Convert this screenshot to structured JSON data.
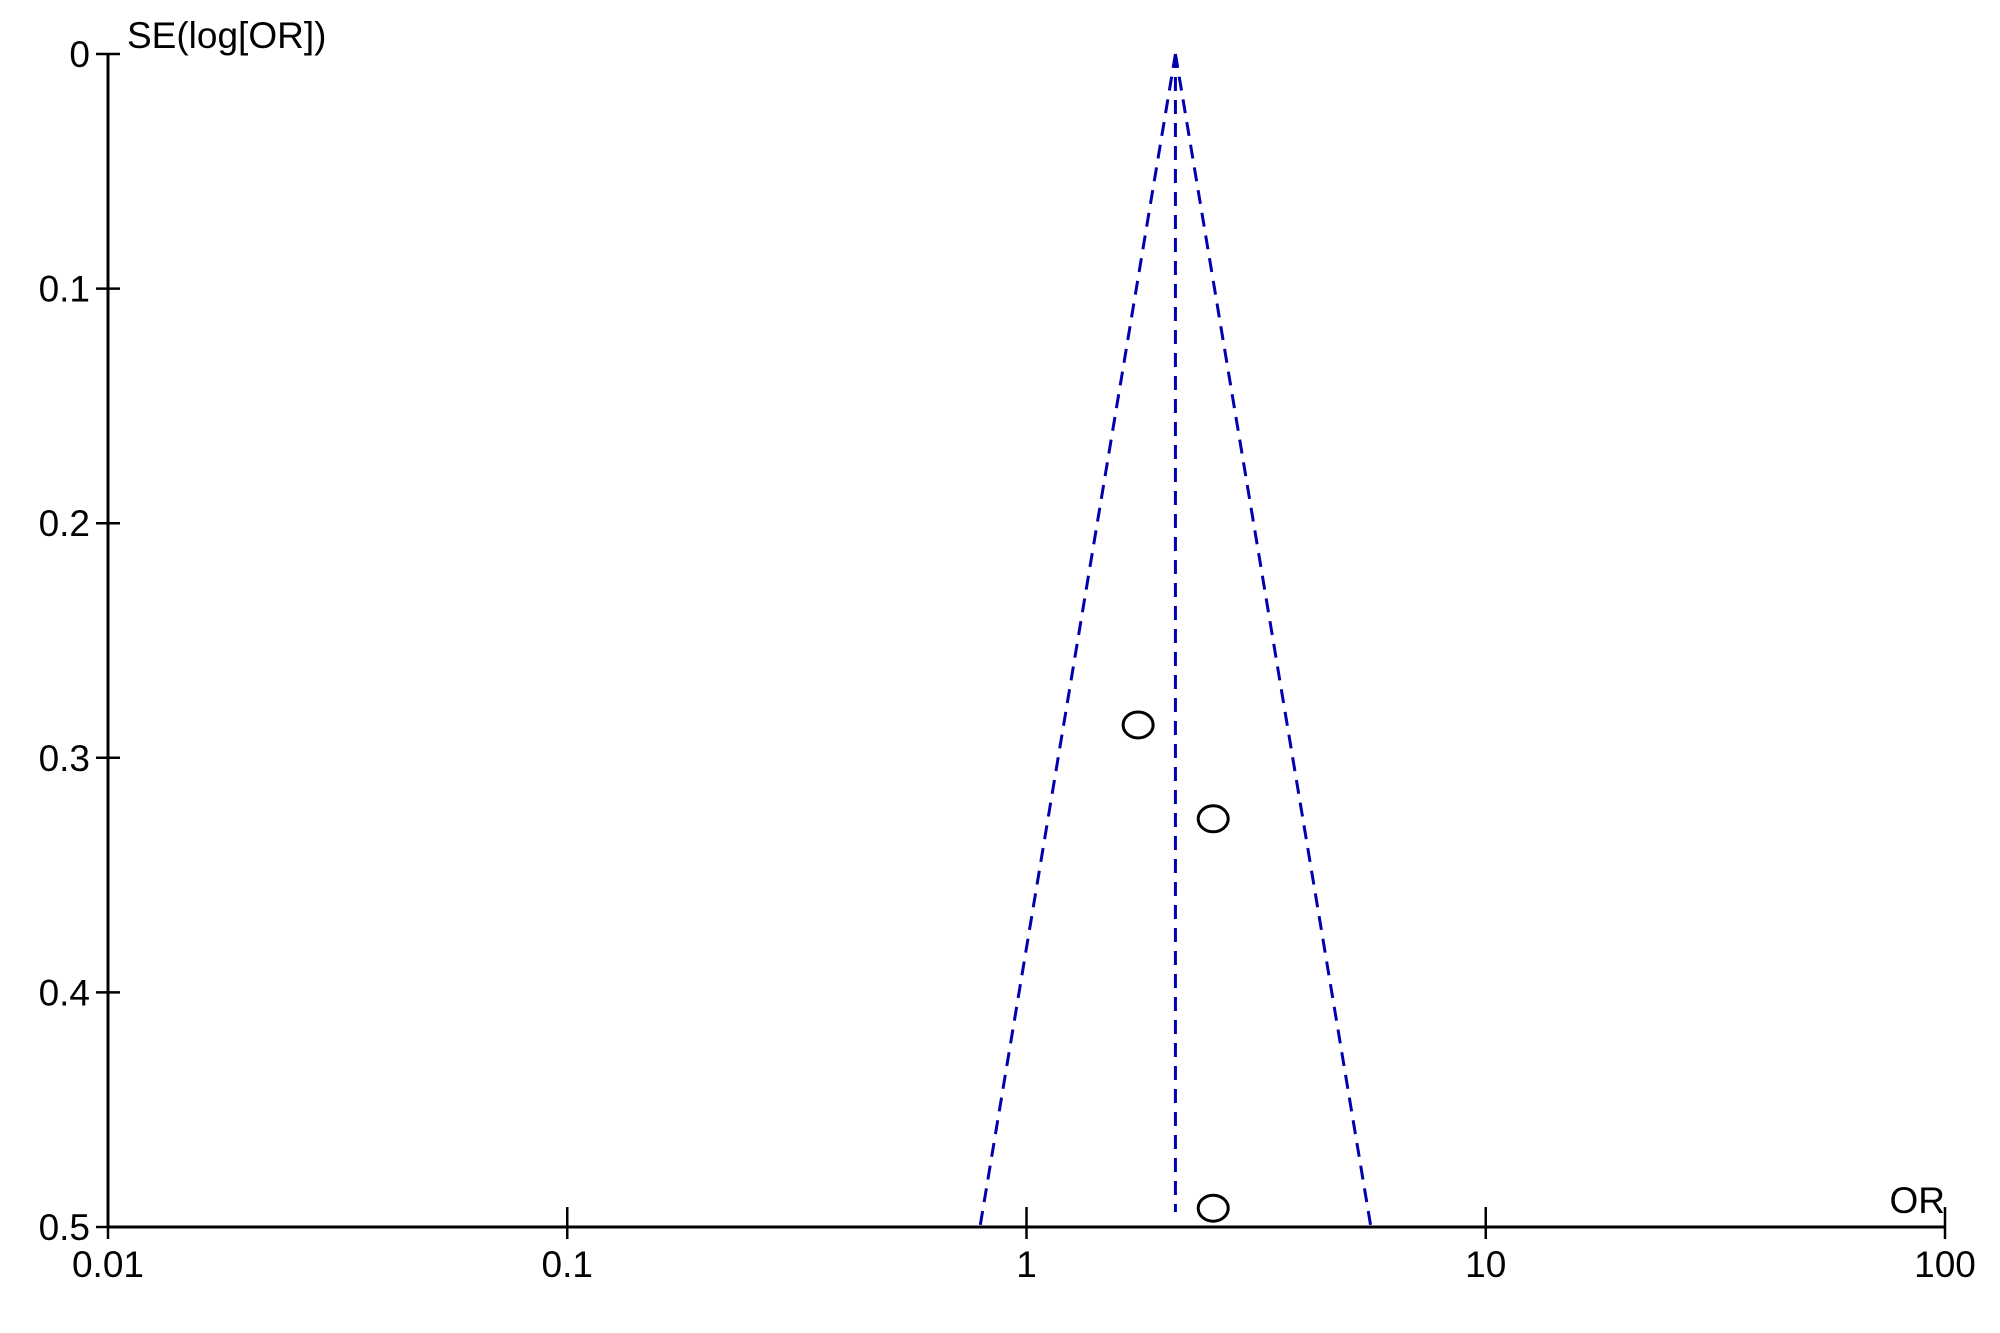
{
  "chart_data": {
    "type": "scatter",
    "subtype": "funnel plot",
    "xlabel": "OR",
    "ylabel": "SE(log[OR])",
    "x_scale": "log",
    "xlim": [
      0.01,
      100
    ],
    "ylim": [
      0,
      0.5
    ],
    "y_inverted": true,
    "x_ticks": [
      "0.01",
      "0.1",
      "1",
      "10",
      "100"
    ],
    "y_ticks": [
      "0",
      "0.1",
      "0.2",
      "0.3",
      "0.4",
      "0.5"
    ],
    "grid": false,
    "pooled_or": 2.11,
    "funnel_z": 1.96,
    "points": [
      {
        "or": 1.75,
        "se": 0.286
      },
      {
        "or": 2.55,
        "se": 0.326
      },
      {
        "or": 2.55,
        "se": 0.492
      }
    ],
    "colors": {
      "funnel": "#0000b0",
      "points": "#000000",
      "axes": "#000000"
    }
  }
}
